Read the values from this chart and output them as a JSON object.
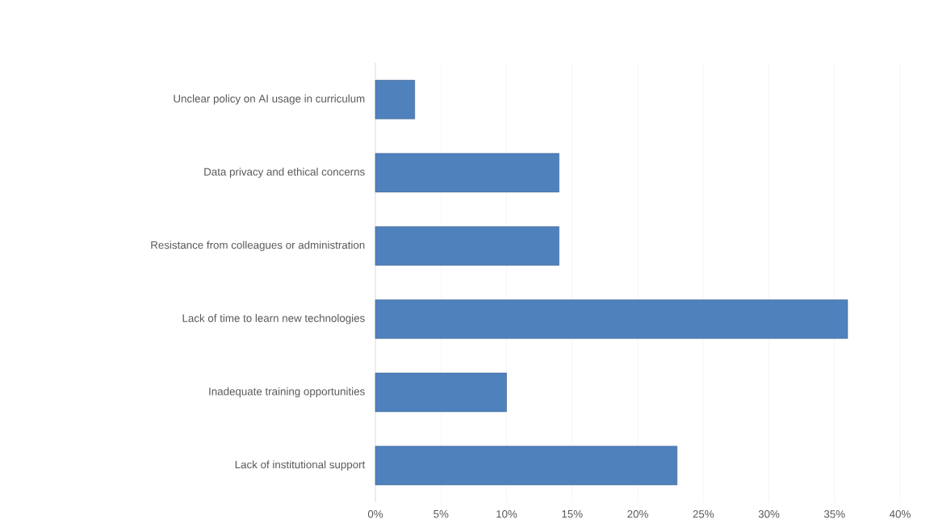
{
  "chart_data": {
    "type": "bar",
    "orientation": "horizontal",
    "categories": [
      "Unclear policy on AI usage in curriculum",
      "Data privacy and ethical concerns",
      "Resistance from colleagues or administration",
      "Lack of time to learn new technologies",
      "Inadequate training opportunities",
      "Lack of institutional support"
    ],
    "values": [
      3,
      14,
      14,
      36,
      10,
      23
    ],
    "color": "#4f81bd",
    "xlim": [
      0,
      40
    ],
    "xticks": [
      {
        "value": 0,
        "label": "0%"
      },
      {
        "value": 5,
        "label": "5%"
      },
      {
        "value": 10,
        "label": "10%"
      },
      {
        "value": 15,
        "label": "15%"
      },
      {
        "value": 20,
        "label": "20%"
      },
      {
        "value": 25,
        "label": "25%"
      },
      {
        "value": 30,
        "label": "30%"
      },
      {
        "value": 35,
        "label": "35%"
      },
      {
        "value": 40,
        "label": "40%"
      }
    ],
    "grid": "x"
  }
}
